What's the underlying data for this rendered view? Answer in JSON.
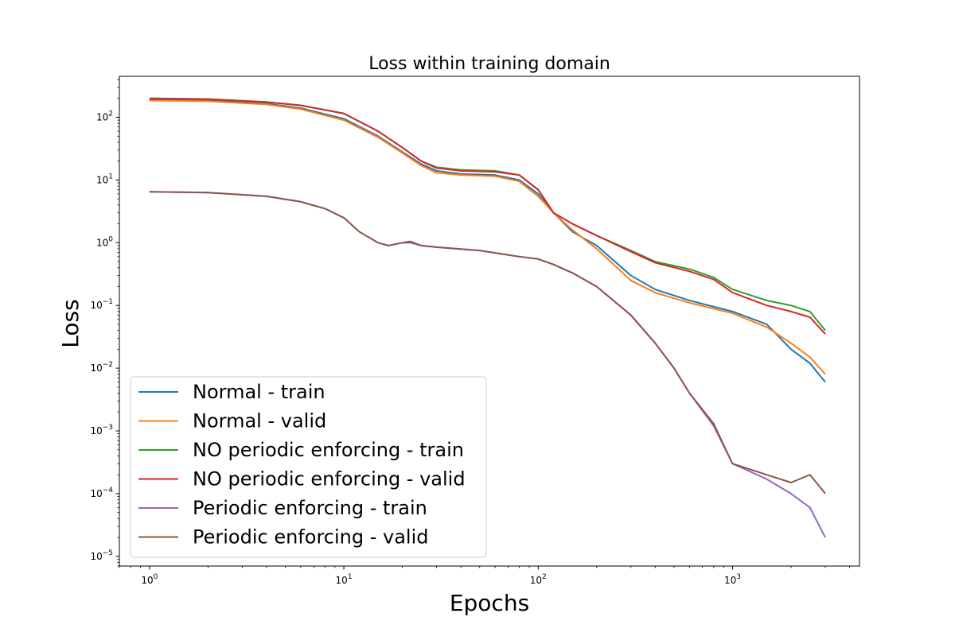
{
  "chart_data": {
    "type": "line",
    "title": "Loss within training domain",
    "xlabel": "Epochs",
    "ylabel": "Loss",
    "xscale": "log",
    "yscale": "log",
    "xlim": [
      0.7,
      4500
    ],
    "ylim": [
      7e-06,
      450
    ],
    "x_ticks": [
      {
        "base": "10",
        "exp": "0",
        "value": 1
      },
      {
        "base": "10",
        "exp": "1",
        "value": 10
      },
      {
        "base": "10",
        "exp": "2",
        "value": 100
      },
      {
        "base": "10",
        "exp": "3",
        "value": 1000
      }
    ],
    "y_ticks": [
      {
        "base": "10",
        "exp": "2",
        "value": 100
      },
      {
        "base": "10",
        "exp": "1",
        "value": 10
      },
      {
        "base": "10",
        "exp": "0",
        "value": 1
      },
      {
        "base": "10",
        "exp": "−1",
        "value": 0.1
      },
      {
        "base": "10",
        "exp": "−2",
        "value": 0.01
      },
      {
        "base": "10",
        "exp": "−3",
        "value": 0.001
      },
      {
        "base": "10",
        "exp": "−4",
        "value": 0.0001
      },
      {
        "base": "10",
        "exp": "−5",
        "value": 1e-05
      }
    ],
    "legend_position": "lower-left",
    "series": [
      {
        "name": "Normal - train",
        "color": "#1f77b4",
        "points": [
          [
            1,
            190
          ],
          [
            2,
            185
          ],
          [
            4,
            165
          ],
          [
            6,
            140
          ],
          [
            10,
            95
          ],
          [
            15,
            50
          ],
          [
            20,
            28
          ],
          [
            25,
            18
          ],
          [
            30,
            14
          ],
          [
            40,
            12.5
          ],
          [
            60,
            12
          ],
          [
            80,
            10
          ],
          [
            100,
            6
          ],
          [
            120,
            3
          ],
          [
            150,
            1.5
          ],
          [
            200,
            0.9
          ],
          [
            300,
            0.3
          ],
          [
            400,
            0.18
          ],
          [
            600,
            0.12
          ],
          [
            1000,
            0.08
          ],
          [
            1500,
            0.05
          ],
          [
            2000,
            0.02
          ],
          [
            2500,
            0.012
          ],
          [
            3000,
            0.006
          ]
        ]
      },
      {
        "name": "Normal - valid",
        "color": "#ff7f0e",
        "points": [
          [
            1,
            185
          ],
          [
            2,
            180
          ],
          [
            4,
            160
          ],
          [
            6,
            135
          ],
          [
            10,
            90
          ],
          [
            15,
            48
          ],
          [
            20,
            27
          ],
          [
            25,
            17
          ],
          [
            30,
            13
          ],
          [
            40,
            12
          ],
          [
            60,
            11.5
          ],
          [
            80,
            9.5
          ],
          [
            100,
            5.5
          ],
          [
            120,
            3
          ],
          [
            150,
            1.6
          ],
          [
            200,
            0.8
          ],
          [
            300,
            0.25
          ],
          [
            400,
            0.16
          ],
          [
            600,
            0.11
          ],
          [
            1000,
            0.075
          ],
          [
            1500,
            0.045
          ],
          [
            2000,
            0.025
          ],
          [
            2500,
            0.015
          ],
          [
            3000,
            0.008
          ]
        ]
      },
      {
        "name": "NO periodic enforcing - train",
        "color": "#2ca02c",
        "points": [
          [
            1,
            200
          ],
          [
            2,
            195
          ],
          [
            4,
            175
          ],
          [
            6,
            155
          ],
          [
            10,
            115
          ],
          [
            15,
            60
          ],
          [
            20,
            33
          ],
          [
            25,
            20
          ],
          [
            30,
            16
          ],
          [
            40,
            14.5
          ],
          [
            60,
            14
          ],
          [
            80,
            12
          ],
          [
            100,
            7
          ],
          [
            120,
            3
          ],
          [
            150,
            2
          ],
          [
            200,
            1.3
          ],
          [
            300,
            0.75
          ],
          [
            400,
            0.5
          ],
          [
            600,
            0.38
          ],
          [
            800,
            0.28
          ],
          [
            1000,
            0.18
          ],
          [
            1500,
            0.12
          ],
          [
            2000,
            0.1
          ],
          [
            2500,
            0.08
          ],
          [
            3000,
            0.04
          ]
        ]
      },
      {
        "name": "NO periodic enforcing - valid",
        "color": "#d62728",
        "points": [
          [
            1,
            200
          ],
          [
            2,
            195
          ],
          [
            4,
            175
          ],
          [
            6,
            155
          ],
          [
            10,
            115
          ],
          [
            15,
            60
          ],
          [
            20,
            33
          ],
          [
            25,
            20
          ],
          [
            30,
            15.5
          ],
          [
            40,
            14
          ],
          [
            60,
            13.5
          ],
          [
            80,
            12
          ],
          [
            100,
            7
          ],
          [
            120,
            3
          ],
          [
            150,
            2
          ],
          [
            200,
            1.3
          ],
          [
            300,
            0.72
          ],
          [
            400,
            0.48
          ],
          [
            600,
            0.35
          ],
          [
            800,
            0.26
          ],
          [
            1000,
            0.16
          ],
          [
            1500,
            0.1
          ],
          [
            2000,
            0.08
          ],
          [
            2500,
            0.065
          ],
          [
            3000,
            0.035
          ]
        ]
      },
      {
        "name": "Periodic enforcing - train",
        "color": "#9467bd",
        "points": [
          [
            1,
            6.5
          ],
          [
            2,
            6.3
          ],
          [
            4,
            5.5
          ],
          [
            6,
            4.5
          ],
          [
            8,
            3.5
          ],
          [
            10,
            2.5
          ],
          [
            12,
            1.5
          ],
          [
            15,
            1.0
          ],
          [
            17,
            0.9
          ],
          [
            20,
            1.0
          ],
          [
            22,
            1.0
          ],
          [
            25,
            0.9
          ],
          [
            30,
            0.85
          ],
          [
            50,
            0.75
          ],
          [
            80,
            0.6
          ],
          [
            100,
            0.55
          ],
          [
            120,
            0.45
          ],
          [
            150,
            0.33
          ],
          [
            200,
            0.2
          ],
          [
            300,
            0.07
          ],
          [
            400,
            0.025
          ],
          [
            500,
            0.01
          ],
          [
            600,
            0.004
          ],
          [
            800,
            0.0012
          ],
          [
            1000,
            0.0003
          ],
          [
            1500,
            0.00017
          ],
          [
            2000,
            0.0001
          ],
          [
            2500,
            6e-05
          ],
          [
            3000,
            2e-05
          ]
        ]
      },
      {
        "name": "Periodic enforcing - valid",
        "color": "#8c564b",
        "points": [
          [
            1,
            6.5
          ],
          [
            2,
            6.3
          ],
          [
            4,
            5.5
          ],
          [
            6,
            4.5
          ],
          [
            8,
            3.5
          ],
          [
            10,
            2.5
          ],
          [
            12,
            1.5
          ],
          [
            15,
            1.0
          ],
          [
            17,
            0.9
          ],
          [
            20,
            1.0
          ],
          [
            22,
            1.05
          ],
          [
            25,
            0.9
          ],
          [
            30,
            0.85
          ],
          [
            50,
            0.75
          ],
          [
            80,
            0.6
          ],
          [
            100,
            0.55
          ],
          [
            120,
            0.45
          ],
          [
            150,
            0.33
          ],
          [
            200,
            0.2
          ],
          [
            300,
            0.07
          ],
          [
            400,
            0.025
          ],
          [
            500,
            0.01
          ],
          [
            600,
            0.004
          ],
          [
            800,
            0.0013
          ],
          [
            1000,
            0.0003
          ],
          [
            1500,
            0.0002
          ],
          [
            2000,
            0.00015
          ],
          [
            2500,
            0.0002
          ],
          [
            3000,
            0.0001
          ]
        ]
      }
    ]
  }
}
